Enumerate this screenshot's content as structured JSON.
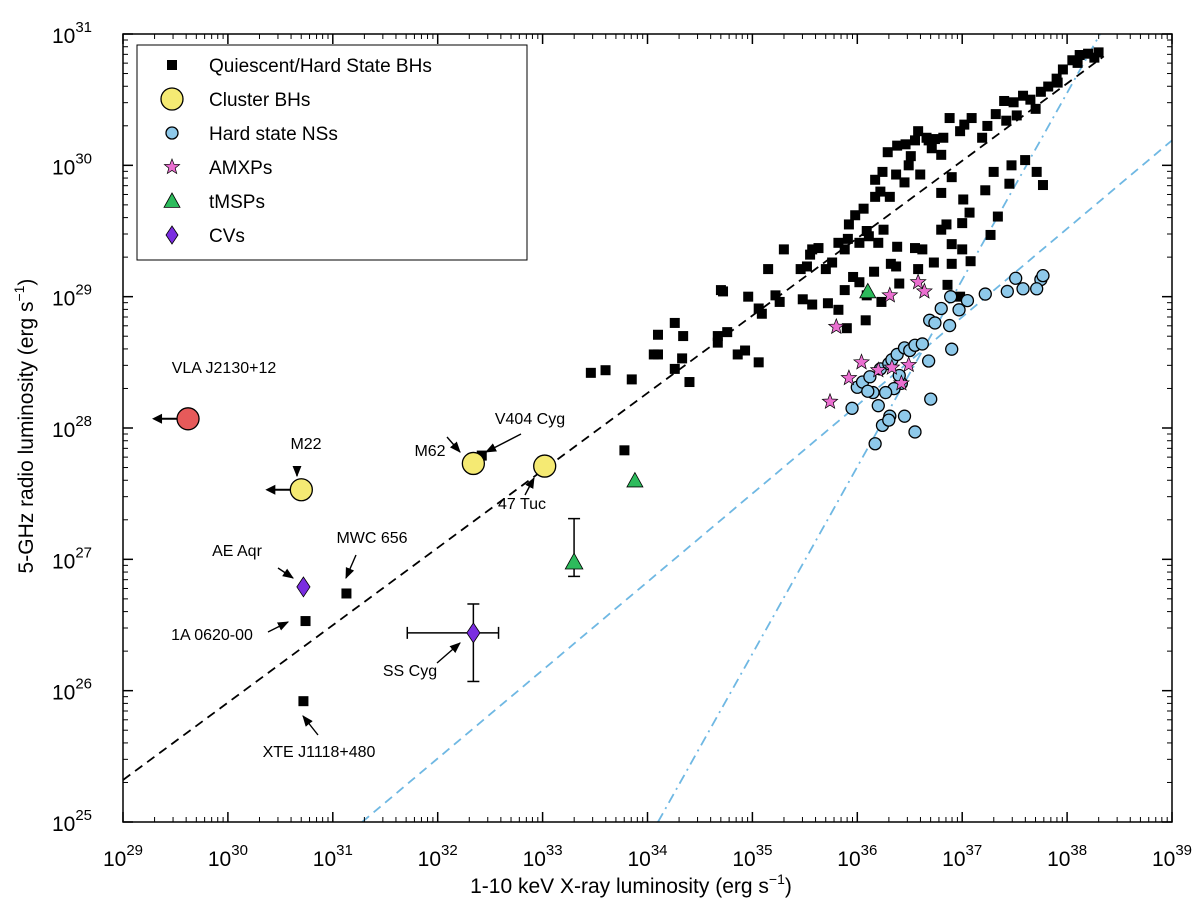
{
  "chart_data": {
    "type": "scatter",
    "xlabel": "1-10 keV X-ray luminosity (erg s",
    "xlabel_sup": "−1",
    "xlabel_end": ")",
    "ylabel": "5-GHz radio luminosity (erg s",
    "ylabel_sup": "−1",
    "ylabel_end": ")",
    "x_log_range": [
      29,
      39
    ],
    "y_log_range": [
      25,
      31
    ],
    "x_ticks": [
      {
        "exp": 29,
        "base": "10",
        "sup": "29"
      },
      {
        "exp": 30,
        "base": "10",
        "sup": "30"
      },
      {
        "exp": 31,
        "base": "10",
        "sup": "31"
      },
      {
        "exp": 32,
        "base": "10",
        "sup": "32"
      },
      {
        "exp": 33,
        "base": "10",
        "sup": "33"
      },
      {
        "exp": 34,
        "base": "10",
        "sup": "34"
      },
      {
        "exp": 35,
        "base": "10",
        "sup": "35"
      },
      {
        "exp": 36,
        "base": "10",
        "sup": "36"
      },
      {
        "exp": 37,
        "base": "10",
        "sup": "37"
      },
      {
        "exp": 38,
        "base": "10",
        "sup": "38"
      },
      {
        "exp": 39,
        "base": "10",
        "sup": "39"
      }
    ],
    "y_ticks": [
      {
        "exp": 25,
        "base": "10",
        "sup": "25"
      },
      {
        "exp": 26,
        "base": "10",
        "sup": "26"
      },
      {
        "exp": 27,
        "base": "10",
        "sup": "27"
      },
      {
        "exp": 28,
        "base": "10",
        "sup": "28"
      },
      {
        "exp": 29,
        "base": "10",
        "sup": "29"
      },
      {
        "exp": 30,
        "base": "10",
        "sup": "30"
      },
      {
        "exp": 31,
        "base": "10",
        "sup": "31"
      }
    ],
    "legend": {
      "position": "top-left",
      "entries": [
        {
          "key": "bh",
          "label": "Quiescent/Hard State BHs"
        },
        {
          "key": "cluster",
          "label": "Cluster BHs"
        },
        {
          "key": "ns",
          "label": "Hard state NSs"
        },
        {
          "key": "amxp",
          "label": "AMXPs"
        },
        {
          "key": "tmsp",
          "label": "tMSPs"
        },
        {
          "key": "cv",
          "label": "CVs"
        }
      ]
    },
    "styles": {
      "bh": {
        "marker": "square",
        "color": "#000000"
      },
      "cluster": {
        "marker": "circle",
        "color": "#f5ea73"
      },
      "ns": {
        "marker": "circle",
        "color": "#8ec9ea"
      },
      "amxp": {
        "marker": "star",
        "color": "#ea6fd0"
      },
      "tmsp": {
        "marker": "triangle",
        "color": "#2dbb5c"
      },
      "cv": {
        "marker": "diamond",
        "color": "#7a2de0"
      },
      "vla": {
        "marker": "circle",
        "color": "#e65a5a"
      },
      "bh_line": "#000000",
      "ns_lines": "#6fb8e3"
    },
    "trend_lines": [
      {
        "name": "BH track",
        "style": "dashed",
        "color": "#000000",
        "log_points": [
          [
            29.0,
            25.32
          ],
          [
            38.35,
            30.83
          ]
        ]
      },
      {
        "name": "NS track (shallow)",
        "style": "dashed",
        "color": "#6fb8e3",
        "log_points": [
          [
            31.28,
            25.0
          ],
          [
            39.0,
            30.19
          ]
        ]
      },
      {
        "name": "NS track (steep)",
        "style": "dashdot",
        "color": "#6fb8e3",
        "log_points": [
          [
            34.1,
            25.0
          ],
          [
            38.35,
            31.05
          ]
        ]
      }
    ],
    "annotations": [
      {
        "text": "VLA J2130+12",
        "x": 29.6,
        "y": 28.07
      },
      {
        "text": "M22",
        "x": 30.85,
        "y": 27.51
      },
      {
        "text": "M62",
        "x": 32.05,
        "y": 28.03
      },
      {
        "text": "V404 Cyg",
        "x": 32.95,
        "y": 28.03
      },
      {
        "text": "47 Tuc",
        "x": 32.85,
        "y": 27.27
      },
      {
        "text": "MWC 656",
        "x": 31.5,
        "y": 27.11
      },
      {
        "text": "AE Aqr",
        "x": 30.39,
        "y": 27.05
      },
      {
        "text": "1A 0620-00",
        "x": 30.12,
        "y": 26.38
      },
      {
        "text": "SS Cyg",
        "x": 32.15,
        "y": 26.06
      },
      {
        "text": "XTE J1118+480",
        "x": 30.93,
        "y": 25.44
      }
    ],
    "special_points": [
      {
        "name": "VLA J2130+12",
        "key": "vla",
        "x": 29.62,
        "y": 28.07,
        "upper_limit_x": true
      },
      {
        "name": "M22",
        "key": "cluster",
        "x": 30.7,
        "y": 27.53,
        "upper_limit_x": true
      },
      {
        "name": "M62",
        "key": "cluster",
        "x": 32.34,
        "y": 27.73
      },
      {
        "name": "47 Tuc",
        "key": "cluster",
        "x": 33.02,
        "y": 27.71
      },
      {
        "name": "SS Cyg",
        "key": "cv",
        "x": 32.34,
        "y": 26.44,
        "xerr": [
          31.71,
          32.58
        ],
        "yerr": [
          26.07,
          26.66
        ]
      },
      {
        "name": "AE Aqr",
        "key": "cv",
        "x": 30.72,
        "y": 26.79
      },
      {
        "name": "tMSP error",
        "key": "tmsp",
        "x": 33.3,
        "y": 26.98,
        "yerr": [
          26.87,
          27.31
        ]
      }
    ],
    "series": [
      {
        "name": "Quiescent/Hard State BHs",
        "key": "bh",
        "points": [
          [
            30.74,
            26.53
          ],
          [
            30.72,
            25.92
          ],
          [
            31.13,
            26.74
          ],
          [
            32.42,
            27.79
          ],
          [
            33.78,
            27.83
          ],
          [
            33.46,
            28.42
          ],
          [
            33.6,
            28.44
          ],
          [
            34.06,
            28.56
          ],
          [
            34.26,
            28.45
          ],
          [
            34.34,
            28.7
          ],
          [
            34.26,
            28.8
          ],
          [
            34.67,
            28.65
          ],
          [
            34.67,
            28.7
          ],
          [
            34.76,
            28.73
          ],
          [
            34.86,
            28.56
          ],
          [
            34.93,
            28.59
          ],
          [
            35.06,
            28.5
          ],
          [
            34.7,
            29.05
          ],
          [
            34.72,
            29.04
          ],
          [
            34.96,
            29.0
          ],
          [
            35.06,
            28.91
          ],
          [
            35.09,
            28.87
          ],
          [
            35.26,
            28.96
          ],
          [
            35.22,
            29.01
          ],
          [
            35.48,
            28.98
          ],
          [
            35.57,
            28.94
          ],
          [
            35.15,
            29.21
          ],
          [
            35.3,
            29.36
          ],
          [
            35.46,
            29.21
          ],
          [
            35.52,
            29.23
          ],
          [
            35.55,
            29.32
          ],
          [
            35.57,
            29.36
          ],
          [
            35.7,
            29.21
          ],
          [
            35.76,
            29.26
          ],
          [
            35.82,
            29.41
          ],
          [
            35.63,
            29.37
          ],
          [
            35.88,
            29.36
          ],
          [
            35.91,
            29.44
          ],
          [
            36.02,
            29.41
          ],
          [
            36.09,
            29.5
          ],
          [
            36.11,
            29.46
          ],
          [
            36.2,
            29.41
          ],
          [
            36.25,
            29.51
          ],
          [
            36.38,
            29.38
          ],
          [
            35.92,
            29.55
          ],
          [
            35.98,
            29.62
          ],
          [
            36.06,
            29.67
          ],
          [
            36.17,
            29.76
          ],
          [
            36.22,
            29.8
          ],
          [
            36.31,
            29.76
          ],
          [
            36.17,
            29.89
          ],
          [
            36.24,
            29.95
          ],
          [
            36.37,
            29.93
          ],
          [
            36.45,
            29.87
          ],
          [
            36.49,
            30.0
          ],
          [
            36.29,
            30.1
          ],
          [
            36.38,
            30.15
          ],
          [
            36.46,
            30.16
          ],
          [
            36.51,
            30.07
          ],
          [
            36.6,
            29.93
          ],
          [
            36.71,
            30.13
          ],
          [
            36.8,
            30.08
          ],
          [
            36.66,
            30.21
          ],
          [
            36.55,
            30.19
          ],
          [
            36.74,
            30.2
          ],
          [
            36.58,
            30.26
          ],
          [
            36.68,
            30.19
          ],
          [
            36.82,
            30.21
          ],
          [
            36.88,
            30.36
          ],
          [
            36.98,
            30.26
          ],
          [
            37.02,
            30.31
          ],
          [
            37.19,
            30.21
          ],
          [
            37.09,
            30.36
          ],
          [
            37.24,
            30.3
          ],
          [
            37.32,
            30.39
          ],
          [
            37.4,
            30.49
          ],
          [
            37.49,
            30.48
          ],
          [
            37.58,
            30.53
          ],
          [
            37.65,
            30.5
          ],
          [
            37.75,
            30.56
          ],
          [
            37.82,
            30.6
          ],
          [
            37.9,
            30.66
          ],
          [
            37.96,
            30.73
          ],
          [
            38.05,
            30.8
          ],
          [
            38.12,
            30.84
          ],
          [
            38.2,
            30.85
          ],
          [
            38.26,
            30.82
          ],
          [
            38.3,
            30.86
          ],
          [
            38.1,
            30.78
          ],
          [
            37.91,
            30.63
          ],
          [
            37.7,
            30.43
          ],
          [
            37.52,
            30.38
          ],
          [
            37.42,
            30.34
          ],
          [
            36.8,
            29.79
          ],
          [
            36.9,
            29.91
          ],
          [
            37.01,
            29.74
          ],
          [
            37.07,
            29.64
          ],
          [
            37.22,
            29.81
          ],
          [
            37.3,
            29.95
          ],
          [
            37.45,
            29.86
          ],
          [
            37.47,
            30.0
          ],
          [
            37.6,
            30.04
          ],
          [
            37.71,
            29.95
          ],
          [
            37.77,
            29.85
          ],
          [
            37.34,
            29.61
          ],
          [
            37.27,
            29.47
          ],
          [
            37.0,
            29.56
          ],
          [
            37.0,
            29.36
          ],
          [
            36.9,
            29.4
          ],
          [
            36.85,
            29.55
          ],
          [
            36.8,
            29.51
          ],
          [
            36.73,
            29.26
          ],
          [
            36.9,
            29.25
          ],
          [
            37.08,
            29.27
          ],
          [
            36.98,
            29.0
          ],
          [
            36.86,
            29.09
          ],
          [
            36.55,
            29.37
          ],
          [
            36.62,
            29.36
          ],
          [
            36.58,
            29.21
          ],
          [
            36.4,
            29.1
          ],
          [
            36.37,
            29.23
          ],
          [
            36.32,
            29.25
          ],
          [
            36.23,
            28.96
          ],
          [
            36.16,
            29.19
          ],
          [
            36.08,
            28.82
          ],
          [
            36.09,
            29.01
          ],
          [
            36.02,
            29.11
          ],
          [
            35.96,
            29.15
          ],
          [
            35.88,
            29.05
          ],
          [
            35.82,
            28.9
          ],
          [
            35.72,
            28.95
          ],
          [
            35.9,
            28.76
          ],
          [
            34.4,
            28.35
          ],
          [
            33.85,
            28.37
          ],
          [
            34.1,
            28.71
          ],
          [
            34.33,
            28.53
          ],
          [
            34.1,
            28.56
          ]
        ]
      },
      {
        "name": "Hard state NSs",
        "key": "ns",
        "points": [
          [
            35.95,
            28.15
          ],
          [
            36.0,
            28.31
          ],
          [
            36.05,
            28.35
          ],
          [
            36.12,
            28.39
          ],
          [
            36.22,
            28.45
          ],
          [
            36.3,
            28.49
          ],
          [
            36.33,
            28.52
          ],
          [
            36.38,
            28.56
          ],
          [
            36.45,
            28.61
          ],
          [
            36.5,
            28.59
          ],
          [
            36.55,
            28.63
          ],
          [
            36.62,
            28.64
          ],
          [
            36.69,
            28.82
          ],
          [
            36.74,
            28.8
          ],
          [
            36.8,
            28.91
          ],
          [
            36.88,
            28.78
          ],
          [
            36.89,
            29.0
          ],
          [
            36.97,
            28.9
          ],
          [
            37.05,
            28.97
          ],
          [
            37.22,
            29.02
          ],
          [
            37.43,
            29.04
          ],
          [
            37.51,
            29.14
          ],
          [
            37.75,
            29.13
          ],
          [
            37.77,
            29.16
          ],
          [
            37.58,
            29.06
          ],
          [
            37.71,
            29.06
          ],
          [
            36.9,
            28.6
          ],
          [
            36.68,
            28.51
          ],
          [
            36.42,
            28.34
          ],
          [
            36.4,
            28.4
          ],
          [
            36.35,
            28.3
          ],
          [
            36.27,
            28.27
          ],
          [
            36.15,
            28.27
          ],
          [
            36.2,
            28.17
          ],
          [
            36.31,
            28.09
          ],
          [
            36.45,
            28.09
          ],
          [
            36.55,
            27.97
          ],
          [
            36.7,
            28.22
          ],
          [
            36.24,
            28.02
          ],
          [
            36.1,
            28.28
          ],
          [
            36.3,
            28.06
          ],
          [
            36.17,
            27.88
          ]
        ]
      },
      {
        "name": "AMXPs",
        "key": "amxp",
        "points": [
          [
            35.74,
            28.2
          ],
          [
            35.92,
            28.38
          ],
          [
            36.04,
            28.5
          ],
          [
            35.8,
            28.77
          ],
          [
            36.2,
            28.44
          ],
          [
            36.33,
            28.46
          ],
          [
            36.42,
            28.34
          ],
          [
            36.49,
            28.48
          ],
          [
            36.58,
            29.11
          ],
          [
            36.64,
            29.04
          ],
          [
            36.31,
            29.01
          ]
        ]
      },
      {
        "name": "tMSPs",
        "key": "tmsp",
        "points": [
          [
            33.88,
            27.6
          ],
          [
            36.1,
            29.04
          ]
        ]
      }
    ]
  }
}
